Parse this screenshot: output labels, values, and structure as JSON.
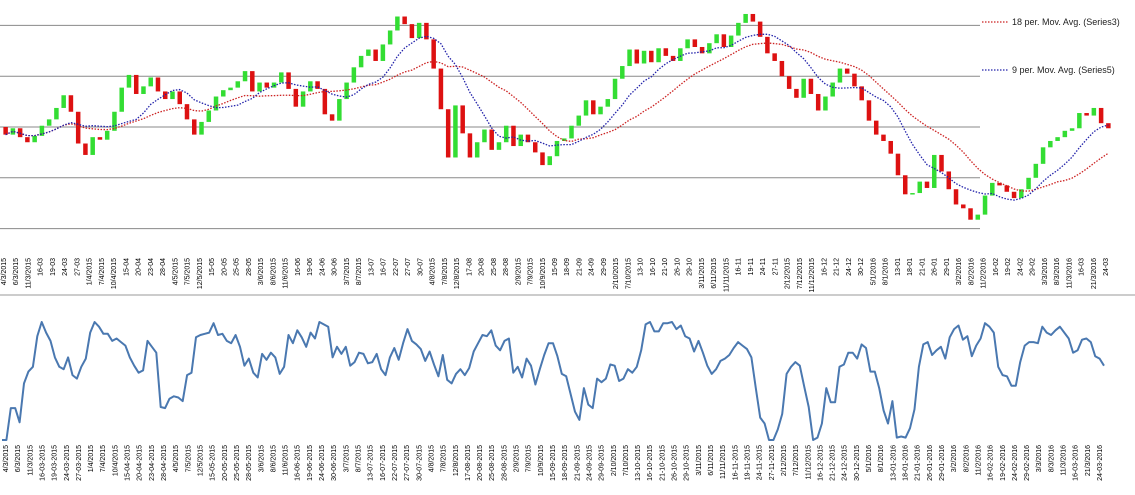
{
  "chart_data": [
    {
      "type": "candlestick",
      "grid": true,
      "legend_position": "top-right",
      "legend": [
        {
          "label": "18 per. Mov. Avg. (Series3)",
          "color": "#cc2222",
          "style": "dotted"
        },
        {
          "label": "9 per. Mov. Avg. (Series5)",
          "color": "#2222aa",
          "style": "dotted"
        }
      ],
      "x_tick_labels": [
        "4/3/2015",
        "6/3/2015",
        "11/3/2015",
        "16-03",
        "19-03",
        "24-03",
        "27-03",
        "1/4/2015",
        "7/4/2015",
        "10/4/2015",
        "15-04",
        "20-04",
        "23-04",
        "28-04",
        "4/5/2015",
        "7/5/2015",
        "12/5/2015",
        "15-05",
        "20-05",
        "25-05",
        "28-05",
        "3/6/2015",
        "8/6/2015",
        "11/6/2015",
        "16-06",
        "19-06",
        "24-06",
        "30-06",
        "3/7/2015",
        "8/7/2015",
        "13-07",
        "16-07",
        "22-07",
        "27-07",
        "30-07",
        "4/8/2015",
        "7/8/2015",
        "12/8/2015",
        "17-08",
        "20-08",
        "25-08",
        "28-08",
        "2/9/2015",
        "7/9/2015",
        "10/9/2015",
        "15-09",
        "18-09",
        "21-09",
        "24-09",
        "29-09",
        "2/10/2015",
        "7/10/2015",
        "13-10",
        "16-10",
        "21-10",
        "26-10",
        "29-10",
        "3/11/2015",
        "6/11/2015",
        "11/11/2015",
        "16-11",
        "19-11",
        "24-11",
        "27-11",
        "2/12/2015",
        "7/12/2015",
        "11/12/2015",
        "16-12",
        "21-12",
        "24-12",
        "30-12",
        "5/1/2016",
        "8/1/2016",
        "13-01",
        "18-01",
        "21-01",
        "26-01",
        "29-01",
        "3/2/2016",
        "8/2/2016",
        "11/2/2016",
        "16-02",
        "19-02",
        "24-02",
        "29-02",
        "3/3/2016",
        "8/3/2016",
        "11/3/2016",
        "16-03",
        "21/3/2016",
        "24-03"
      ],
      "candles": [
        {
          "o": 0.0,
          "c": -0.6
        },
        {
          "o": -0.6,
          "c": -0.1
        },
        {
          "o": -0.1,
          "c": -0.8
        },
        {
          "o": -0.8,
          "c": -1.2
        },
        {
          "o": -1.2,
          "c": -0.7
        },
        {
          "o": -0.7,
          "c": 0.1
        },
        {
          "o": 0.1,
          "c": 0.6
        },
        {
          "o": 0.6,
          "c": 1.5
        },
        {
          "o": 1.5,
          "c": 2.5
        },
        {
          "o": 2.5,
          "c": 1.2
        },
        {
          "o": 1.2,
          "c": -1.3
        },
        {
          "o": -1.3,
          "c": -2.2
        },
        {
          "o": -2.2,
          "c": -0.8
        },
        {
          "o": -0.8,
          "c": -1.0
        },
        {
          "o": -1.0,
          "c": -0.3
        },
        {
          "o": -0.3,
          "c": 1.2
        },
        {
          "o": 1.2,
          "c": 3.1
        },
        {
          "o": 3.1,
          "c": 4.1
        },
        {
          "o": 4.1,
          "c": 2.6
        },
        {
          "o": 2.6,
          "c": 3.2
        },
        {
          "o": 3.2,
          "c": 3.9
        },
        {
          "o": 3.9,
          "c": 2.8
        },
        {
          "o": 2.8,
          "c": 2.2
        },
        {
          "o": 2.2,
          "c": 2.8
        },
        {
          "o": 2.8,
          "c": 1.8
        },
        {
          "o": 1.8,
          "c": 0.6
        },
        {
          "o": 0.6,
          "c": -0.6
        },
        {
          "o": -0.6,
          "c": 0.4
        },
        {
          "o": 0.4,
          "c": 1.3
        },
        {
          "o": 1.3,
          "c": 2.4
        },
        {
          "o": 2.4,
          "c": 2.9
        },
        {
          "o": 2.9,
          "c": 3.1
        },
        {
          "o": 3.1,
          "c": 3.6
        },
        {
          "o": 3.6,
          "c": 4.4
        },
        {
          "o": 4.4,
          "c": 2.8
        },
        {
          "o": 2.8,
          "c": 3.5
        },
        {
          "o": 3.5,
          "c": 3.1
        },
        {
          "o": 3.1,
          "c": 3.5
        },
        {
          "o": 3.5,
          "c": 4.3
        },
        {
          "o": 4.3,
          "c": 3.0
        },
        {
          "o": 3.0,
          "c": 1.6
        },
        {
          "o": 1.6,
          "c": 2.8
        },
        {
          "o": 2.8,
          "c": 3.6
        },
        {
          "o": 3.6,
          "c": 3.0
        },
        {
          "o": 3.0,
          "c": 1.0
        },
        {
          "o": 1.0,
          "c": 0.5
        },
        {
          "o": 0.5,
          "c": 2.2
        },
        {
          "o": 2.2,
          "c": 3.5
        },
        {
          "o": 3.5,
          "c": 4.7
        },
        {
          "o": 4.7,
          "c": 5.6
        },
        {
          "o": 5.6,
          "c": 6.1
        },
        {
          "o": 6.1,
          "c": 5.2
        },
        {
          "o": 5.2,
          "c": 6.5
        },
        {
          "o": 6.5,
          "c": 7.6
        },
        {
          "o": 7.6,
          "c": 8.7
        },
        {
          "o": 8.7,
          "c": 8.1
        },
        {
          "o": 8.1,
          "c": 7.0
        },
        {
          "o": 7.0,
          "c": 8.2
        },
        {
          "o": 8.2,
          "c": 6.9
        },
        {
          "o": 6.9,
          "c": 4.6
        },
        {
          "o": 4.6,
          "c": 1.4
        },
        {
          "o": 1.4,
          "c": -2.4
        },
        {
          "o": -2.4,
          "c": 1.7
        },
        {
          "o": 1.7,
          "c": -0.5
        },
        {
          "o": -0.5,
          "c": -2.4
        },
        {
          "o": -2.4,
          "c": -1.2
        },
        {
          "o": -1.2,
          "c": -0.2
        },
        {
          "o": -0.2,
          "c": -1.8
        },
        {
          "o": -1.8,
          "c": -1.2
        },
        {
          "o": -1.2,
          "c": 0.1
        },
        {
          "o": 0.1,
          "c": -1.5
        },
        {
          "o": -1.5,
          "c": -0.6
        },
        {
          "o": -0.6,
          "c": -1.2
        },
        {
          "o": -1.2,
          "c": -2.0
        },
        {
          "o": -2.0,
          "c": -3.0
        },
        {
          "o": -3.0,
          "c": -2.3
        },
        {
          "o": -2.3,
          "c": -1.1
        },
        {
          "o": -1.1,
          "c": -0.9
        },
        {
          "o": -0.9,
          "c": 0.1
        },
        {
          "o": 0.1,
          "c": 0.9
        },
        {
          "o": 0.9,
          "c": 2.1
        },
        {
          "o": 2.1,
          "c": 1.0
        },
        {
          "o": 1.0,
          "c": 1.6
        },
        {
          "o": 1.6,
          "c": 2.2
        },
        {
          "o": 2.2,
          "c": 3.8
        },
        {
          "o": 3.8,
          "c": 4.8
        },
        {
          "o": 4.8,
          "c": 6.1
        },
        {
          "o": 6.1,
          "c": 5.0
        },
        {
          "o": 5.0,
          "c": 6.0
        },
        {
          "o": 6.0,
          "c": 5.1
        },
        {
          "o": 5.1,
          "c": 6.2
        },
        {
          "o": 6.2,
          "c": 5.6
        },
        {
          "o": 5.6,
          "c": 5.2
        },
        {
          "o": 5.2,
          "c": 6.2
        },
        {
          "o": 6.2,
          "c": 6.9
        },
        {
          "o": 6.9,
          "c": 6.3
        },
        {
          "o": 6.3,
          "c": 5.8
        },
        {
          "o": 5.8,
          "c": 6.6
        },
        {
          "o": 6.6,
          "c": 7.3
        },
        {
          "o": 7.3,
          "c": 6.3
        },
        {
          "o": 6.3,
          "c": 7.2
        },
        {
          "o": 7.2,
          "c": 8.2
        },
        {
          "o": 8.2,
          "c": 8.9
        },
        {
          "o": 8.9,
          "c": 8.3
        },
        {
          "o": 8.3,
          "c": 7.1
        },
        {
          "o": 7.1,
          "c": 5.8
        },
        {
          "o": 5.8,
          "c": 5.2
        },
        {
          "o": 5.2,
          "c": 4.0
        },
        {
          "o": 4.0,
          "c": 3.0
        },
        {
          "o": 3.0,
          "c": 2.3
        },
        {
          "o": 2.3,
          "c": 3.8
        },
        {
          "o": 3.8,
          "c": 2.6
        },
        {
          "o": 2.6,
          "c": 1.3
        },
        {
          "o": 1.3,
          "c": 2.4
        },
        {
          "o": 2.4,
          "c": 3.5
        },
        {
          "o": 3.5,
          "c": 4.6
        },
        {
          "o": 4.6,
          "c": 4.2
        },
        {
          "o": 4.2,
          "c": 3.2
        },
        {
          "o": 3.2,
          "c": 2.1
        },
        {
          "o": 2.1,
          "c": 0.5
        },
        {
          "o": 0.5,
          "c": -0.6
        },
        {
          "o": -0.6,
          "c": -1.1
        },
        {
          "o": -1.1,
          "c": -2.1
        },
        {
          "o": -2.1,
          "c": -3.8
        },
        {
          "o": -3.8,
          "c": -5.3
        },
        {
          "o": -5.3,
          "c": -5.2
        },
        {
          "o": -5.2,
          "c": -4.3
        },
        {
          "o": -4.3,
          "c": -4.8
        },
        {
          "o": -4.8,
          "c": -2.2
        },
        {
          "o": -2.2,
          "c": -3.5
        },
        {
          "o": -3.5,
          "c": -4.9
        },
        {
          "o": -4.9,
          "c": -6.1
        },
        {
          "o": -6.1,
          "c": -6.4
        },
        {
          "o": -6.4,
          "c": -7.3
        },
        {
          "o": -7.3,
          "c": -6.9
        },
        {
          "o": -6.9,
          "c": -5.4
        },
        {
          "o": -5.4,
          "c": -4.4
        },
        {
          "o": -4.4,
          "c": -4.6
        },
        {
          "o": -4.6,
          "c": -5.1
        },
        {
          "o": -5.1,
          "c": -5.6
        },
        {
          "o": -5.6,
          "c": -4.9
        },
        {
          "o": -4.9,
          "c": -4.0
        },
        {
          "o": -4.0,
          "c": -2.9
        },
        {
          "o": -2.9,
          "c": -1.6
        },
        {
          "o": -1.6,
          "c": -1.1
        },
        {
          "o": -1.1,
          "c": -0.8
        },
        {
          "o": -0.8,
          "c": -0.3
        },
        {
          "o": -0.3,
          "c": -0.1
        },
        {
          "o": -0.1,
          "c": 1.1
        },
        {
          "o": 1.1,
          "c": 0.9
        },
        {
          "o": 0.9,
          "c": 1.5
        },
        {
          "o": 1.5,
          "c": 0.3
        },
        {
          "o": 0.3,
          "c": -0.1
        }
      ],
      "ylim": [
        -10,
        10
      ],
      "colors": {
        "up": "#33dd33",
        "down": "#dd1111",
        "ma18": "#cc2222",
        "ma9": "#2222aa"
      }
    },
    {
      "type": "line",
      "grid": false,
      "x_tick_labels": [
        "4/3/2015",
        "6/3/2015",
        "11/3/2015",
        "16-03-2015",
        "19-03-2015",
        "24-03-2015",
        "27-03-2015",
        "1/4/2015",
        "7/4/2015",
        "10/4/2015",
        "15-04-2015",
        "20-04-2015",
        "23-04-2015",
        "28-04-2015",
        "4/5/2015",
        "7/5/2015",
        "12/5/2015",
        "15-05-2015",
        "20-05-2015",
        "25-05-2015",
        "28-05-2015",
        "3/6/2015",
        "8/6/2015",
        "11/6/2015",
        "16-06-2015",
        "19-06-2015",
        "24-06-2015",
        "30-06-2015",
        "3/7/2015",
        "8/7/2015",
        "13-07-2015",
        "16-07-2015",
        "22-07-2015",
        "27-07-2015",
        "30-07-2015",
        "4/8/2015",
        "7/8/2015",
        "12/8/2015",
        "17-08-2015",
        "20-08-2015",
        "25-08-2015",
        "28-08-2015",
        "2/9/2015",
        "7/9/2015",
        "10/9/2015",
        "15-09-2015",
        "18-09-2015",
        "21-09-2015",
        "24-09-2015",
        "29-09-2015",
        "2/10/2015",
        "7/10/2015",
        "13-10-2015",
        "16-10-2015",
        "21-10-2015",
        "26-10-2015",
        "29-10-2015",
        "3/11/2015",
        "6/11/2015",
        "11/11/2015",
        "16-11-2015",
        "19-11-2015",
        "24-11-2015",
        "27-11-2015",
        "2/12/2015",
        "7/12/2015",
        "11/12/2015",
        "16-12-2015",
        "21-12-2015",
        "24-12-2015",
        "30-12-2015",
        "5/1/2016",
        "8/1/2016",
        "13-01-2016",
        "18-01-2016",
        "21-01-2016",
        "26-01-2016",
        "29-01-2016",
        "3/2/2016",
        "8/2/2016",
        "11/2/2016",
        "16-02-2016",
        "19-02-2016",
        "24-02-2016",
        "29-02-2016",
        "3/3/2016",
        "8/3/2016",
        "11/3/2016",
        "16-03-2016",
        "21/3/2016",
        "24-03-2016"
      ],
      "values": [
        0,
        0,
        27,
        27,
        15,
        48,
        58,
        62,
        88,
        100,
        91,
        84,
        70,
        62,
        60,
        70,
        55,
        52,
        62,
        69,
        91,
        100,
        96,
        90,
        90,
        84,
        86,
        83,
        80,
        70,
        63,
        57,
        59,
        84,
        79,
        74,
        28,
        27,
        35,
        37,
        36,
        33,
        55,
        57,
        87,
        89,
        90,
        91,
        99,
        89,
        90,
        84,
        82,
        89,
        79,
        63,
        69,
        57,
        53,
        73,
        68,
        74,
        70,
        56,
        62,
        89,
        82,
        93,
        87,
        79,
        91,
        86,
        100,
        98,
        96,
        70,
        79,
        73,
        79,
        63,
        66,
        74,
        73,
        65,
        66,
        73,
        60,
        55,
        70,
        78,
        68,
        82,
        94,
        84,
        81,
        77,
        67,
        75,
        64,
        54,
        72,
        51,
        48,
        56,
        60,
        55,
        61,
        75,
        82,
        89,
        88,
        93,
        80,
        76,
        84,
        86,
        57,
        62,
        53,
        69,
        63,
        47,
        60,
        72,
        82,
        82,
        71,
        56,
        54,
        39,
        24,
        17,
        44,
        30,
        27,
        52,
        49,
        52,
        64,
        63,
        50,
        52,
        60,
        57,
        62,
        76,
        98,
        100,
        92,
        92,
        99,
        99,
        100,
        94,
        97,
        88,
        86,
        75,
        84,
        74,
        63,
        56,
        60,
        67,
        69,
        72,
        78,
        83,
        80,
        77,
        70,
        44,
        19,
        14,
        0,
        0,
        9,
        22,
        56,
        62,
        66,
        63,
        45,
        28,
        0,
        2,
        14,
        44,
        32,
        32,
        62,
        64,
        74,
        74,
        69,
        81,
        78,
        58,
        58,
        44,
        25,
        14,
        33,
        2,
        3,
        2,
        10,
        26,
        62,
        81,
        83,
        72,
        76,
        79,
        69,
        87,
        94,
        97,
        85,
        88,
        71,
        80,
        86,
        99,
        96,
        91,
        62,
        55,
        54,
        46,
        46,
        66,
        80,
        83,
        83,
        82,
        96,
        91,
        89,
        93,
        96,
        91,
        86,
        74,
        76,
        85,
        86,
        83,
        71,
        69,
        63
      ],
      "ylim": [
        0,
        100
      ],
      "colors": {
        "line": "#4a78b0"
      }
    }
  ]
}
